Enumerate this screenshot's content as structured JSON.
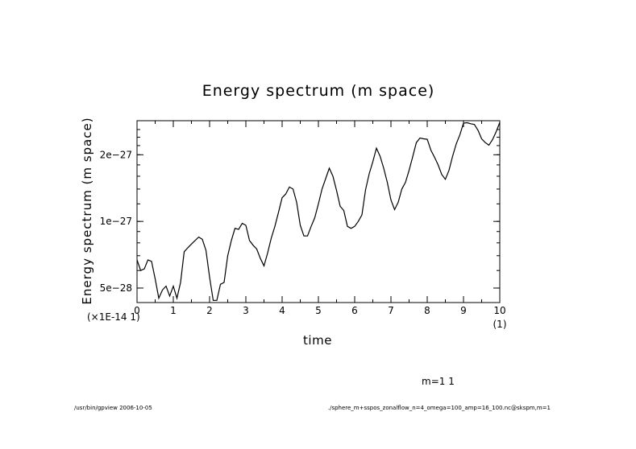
{
  "chart_data": {
    "type": "line",
    "title": "Energy spectrum (m space)",
    "xlabel": "time",
    "ylabel": "Energy spectrum (m space)",
    "x_multiplier_label": "(×1E-14 1)",
    "x_unit_label": "(1)",
    "xlim": [
      0,
      10
    ],
    "ylim": [
      4.3e-28,
      2.85e-27
    ],
    "x_ticks": [
      {
        "value": 0,
        "label": "0"
      },
      {
        "value": 1,
        "label": "1"
      },
      {
        "value": 2,
        "label": "2"
      },
      {
        "value": 3,
        "label": "3"
      },
      {
        "value": 4,
        "label": "4"
      },
      {
        "value": 5,
        "label": "5"
      },
      {
        "value": 6,
        "label": "6"
      },
      {
        "value": 7,
        "label": "7"
      },
      {
        "value": 8,
        "label": "8"
      },
      {
        "value": 9,
        "label": "9"
      },
      {
        "value": 10,
        "label": "10"
      }
    ],
    "y_ticks": [
      {
        "value": 5e-28,
        "label": "5e−28"
      },
      {
        "value": 1e-27,
        "label": "1e−27"
      },
      {
        "value": 2e-27,
        "label": "2e−27"
      }
    ],
    "grid": false,
    "series": [
      {
        "x": [
          0,
          0.1,
          0.2,
          0.3,
          0.4,
          0.5,
          0.6,
          0.7,
          0.8,
          0.9,
          1.0,
          1.1,
          1.2,
          1.3,
          1.4,
          1.5,
          1.6,
          1.7,
          1.8,
          1.9,
          2.0,
          2.1,
          2.2,
          2.3,
          2.4,
          2.5,
          2.6,
          2.7,
          2.8,
          2.9,
          3.0,
          3.1,
          3.2,
          3.3,
          3.4,
          3.5,
          3.6,
          3.7,
          3.8,
          3.9,
          4.0,
          4.1,
          4.2,
          4.3,
          4.4,
          4.5,
          4.6,
          4.7,
          4.8,
          4.9,
          5.0,
          5.1,
          5.2,
          5.3,
          5.4,
          5.5,
          5.6,
          5.7,
          5.8,
          5.9,
          6.0,
          6.1,
          6.2,
          6.3,
          6.4,
          6.5,
          6.6,
          6.7,
          6.8,
          6.9,
          7.0,
          7.1,
          7.2,
          7.3,
          7.4,
          7.5,
          7.6,
          7.7,
          7.8,
          7.9,
          8.0,
          8.1,
          8.2,
          8.3,
          8.4,
          8.5,
          8.6,
          8.7,
          8.8,
          8.9,
          9.0,
          9.1,
          9.2,
          9.3,
          9.4,
          9.5,
          9.6,
          9.7,
          9.8,
          9.9,
          10.0
        ],
        "y": [
          6.7e-28,
          6e-28,
          6.1e-28,
          6.7e-28,
          6.6e-28,
          5.5e-28,
          4.5e-28,
          4.9e-28,
          5.1e-28,
          4.6e-28,
          5.1e-28,
          4.5e-28,
          5.3e-28,
          7.3e-28,
          7.6e-28,
          7.9e-28,
          8.2e-28,
          8.5e-28,
          8.3e-28,
          7.4e-28,
          5.6e-28,
          4.4e-28,
          4.4e-28,
          5.2e-28,
          5.3e-28,
          7e-28,
          8.2e-28,
          9.3e-28,
          9.2e-28,
          9.8e-28,
          9.6e-28,
          8.2e-28,
          7.8e-28,
          7.5e-28,
          6.8e-28,
          6.3e-28,
          7.2e-28,
          8.4e-28,
          9.5e-28,
          1.1e-27,
          1.28e-27,
          1.33e-27,
          1.43e-27,
          1.4e-27,
          1.22e-27,
          9.6e-28,
          8.6e-28,
          8.6e-28,
          9.5e-28,
          1.04e-27,
          1.2e-27,
          1.4e-27,
          1.56e-27,
          1.74e-27,
          1.6e-27,
          1.38e-27,
          1.17e-27,
          1.12e-27,
          9.5e-28,
          9.3e-28,
          9.5e-28,
          1e-27,
          1.07e-27,
          1.39e-27,
          1.64e-27,
          1.86e-27,
          2.14e-27,
          1.97e-27,
          1.74e-27,
          1.5e-27,
          1.25e-27,
          1.13e-27,
          1.22e-27,
          1.4e-27,
          1.5e-27,
          1.7e-27,
          1.96e-27,
          2.27e-27,
          2.38e-27,
          2.36e-27,
          2.35e-27,
          2.1e-27,
          1.95e-27,
          1.8e-27,
          1.63e-27,
          1.55e-27,
          1.7e-27,
          1.97e-27,
          2.24e-27,
          2.46e-27,
          2.78e-27,
          2.79e-27,
          2.76e-27,
          2.74e-27,
          2.58e-27,
          2.36e-27,
          2.27e-27,
          2.21e-27,
          2.34e-27,
          2.54e-27,
          2.8e-27
        ]
      }
    ]
  },
  "annotations": {
    "m_label": "m=1 1",
    "footer_left": "/usr/bin/gpview  2006-10-05",
    "footer_right": "./sphere_m+sspos_zonalflow_n=4_omega=100_amp=16_100.nc@skspm,m=1"
  },
  "colors": {
    "line": "#000000",
    "background": "#ffffff"
  }
}
